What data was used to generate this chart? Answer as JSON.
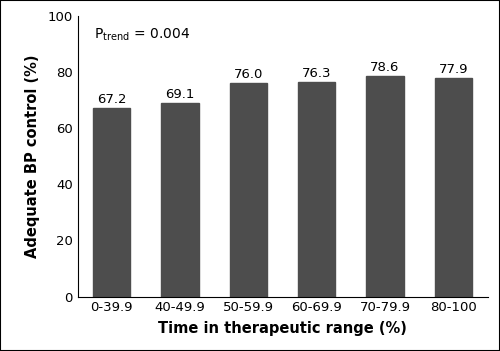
{
  "categories": [
    "0-39.9",
    "40-49.9",
    "50-59.9",
    "60-69.9",
    "70-79.9",
    "80-100"
  ],
  "values": [
    67.2,
    69.1,
    76.0,
    76.3,
    78.6,
    77.9
  ],
  "bar_color": "#4d4d4d",
  "xlabel": "Time in therapeutic range (%)",
  "ylabel": "Adequate BP control (%)",
  "ylim": [
    0,
    100
  ],
  "yticks": [
    0,
    20,
    40,
    60,
    80,
    100
  ],
  "bar_width": 0.55,
  "label_fontsize": 10,
  "value_fontsize": 9.5,
  "axis_label_fontsize": 10.5,
  "tick_fontsize": 9.5,
  "p_fontsize": 10,
  "p_sub_fontsize": 7
}
